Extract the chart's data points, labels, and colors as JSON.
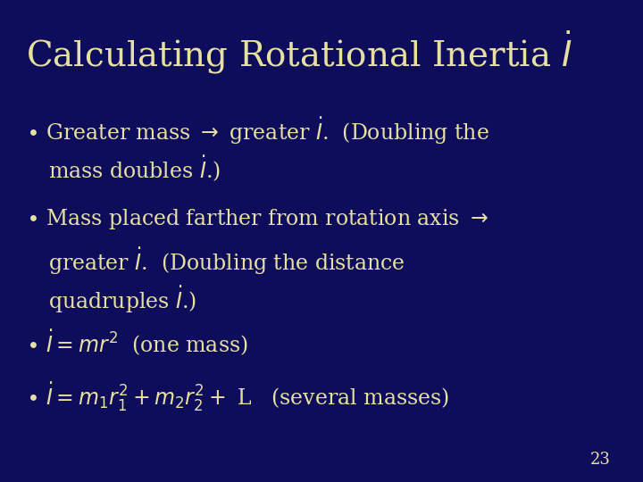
{
  "background_color": "#0d0d5c",
  "title_color": "#e8e0a0",
  "body_color": "#e8e0a0",
  "page_num_color": "#e8e0a0",
  "title_fontsize": 28,
  "body_fontsize": 17,
  "page_num_fontsize": 13,
  "figsize": [
    7.2,
    5.4
  ],
  "dpi": 100
}
